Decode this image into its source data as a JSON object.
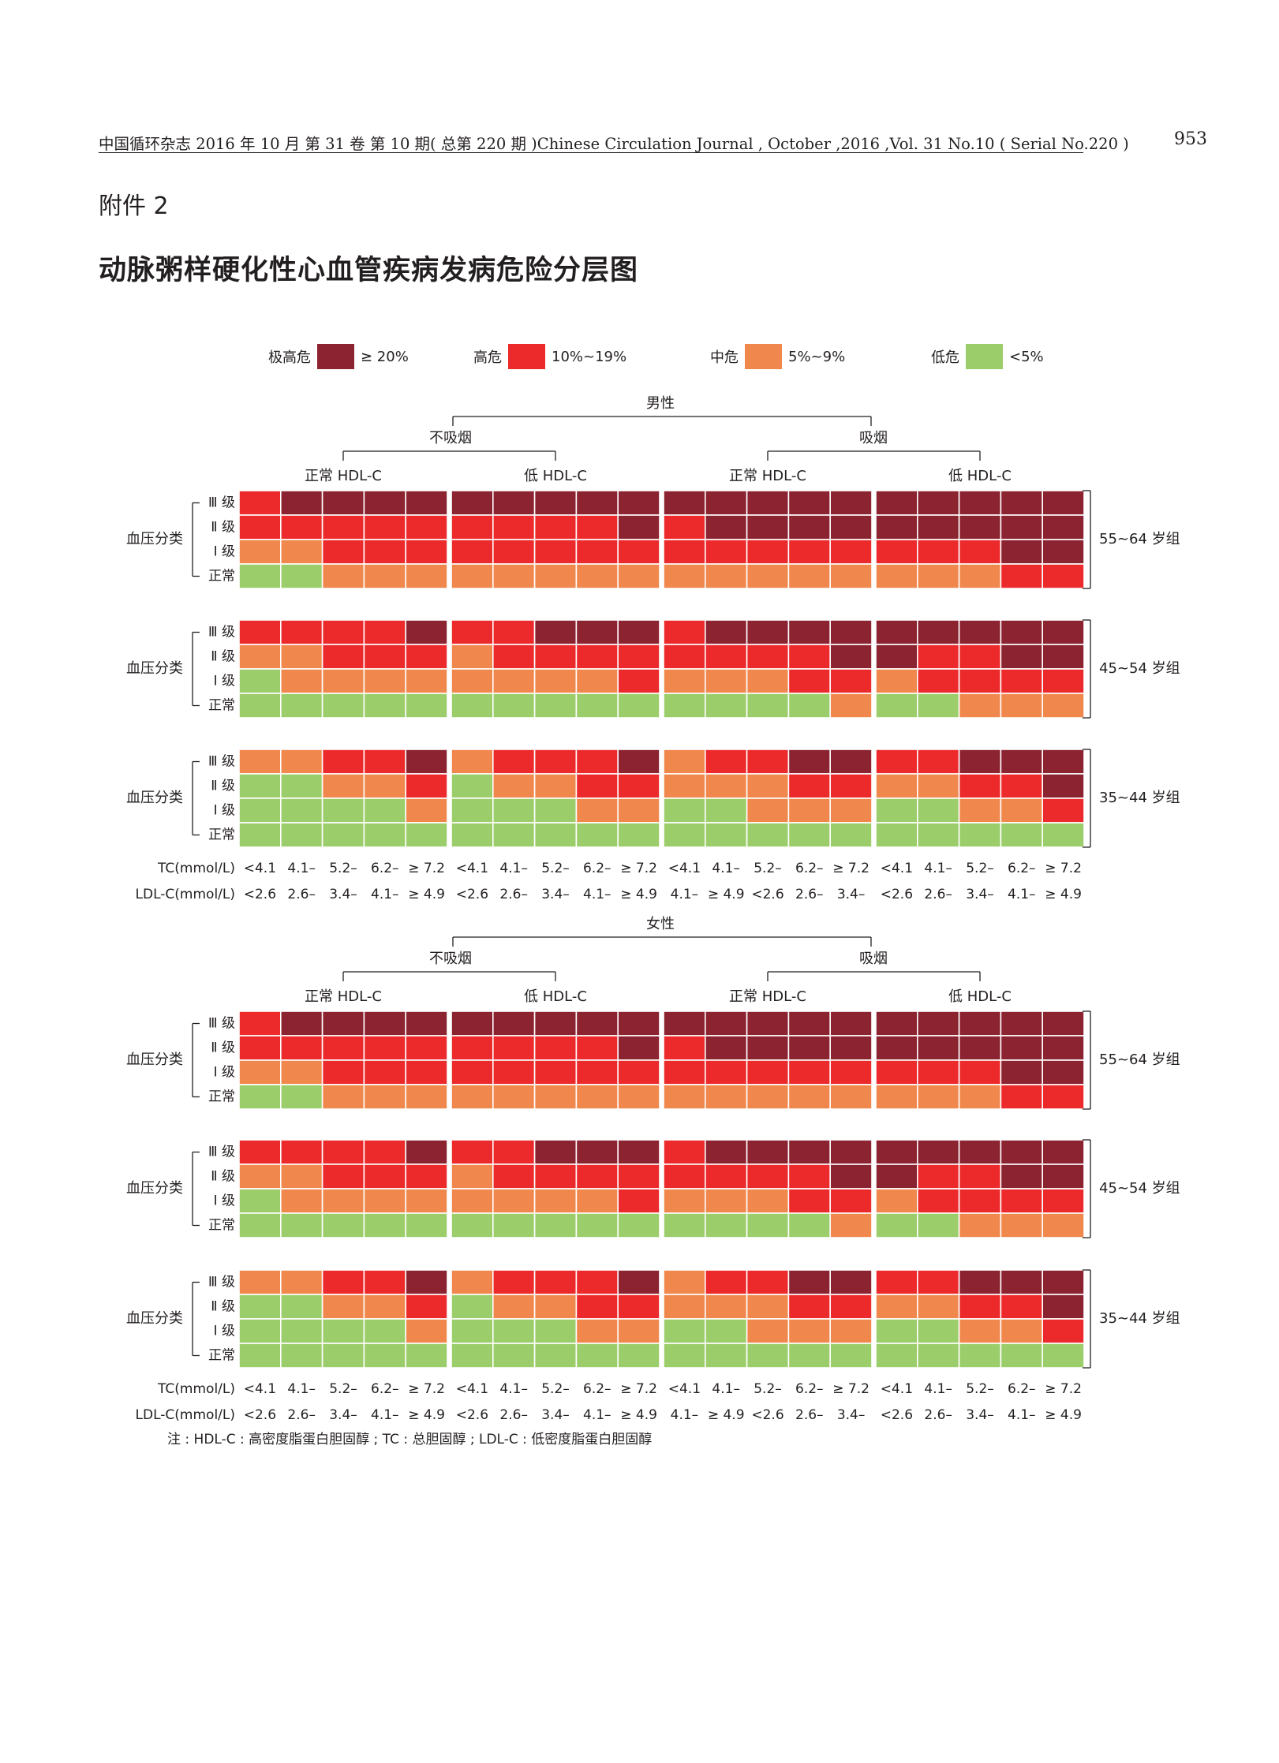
{
  "header": {
    "journal_line": "中国循环杂志 2016 年 10 月 第 31 卷 第 10 期( 总第 220 期 )Chinese Circulation Journal , October ,2016 ,Vol. 31 No.10 ( Serial No.220 )",
    "page_number": "953"
  },
  "appendix_label": "附件 2",
  "title": "动脉粥样硬化性心血管疾病发病危险分层图",
  "legend": [
    {
      "name": "极高危",
      "range": "≥ 20%",
      "color": "#8b2330"
    },
    {
      "name": "高危",
      "range": "10%~19%",
      "color": "#ec2a2c"
    },
    {
      "name": "中危",
      "range": "5%~9%",
      "color": "#f0874d"
    },
    {
      "name": "低危",
      "range": "<5%",
      "color": "#9ccd6b"
    }
  ],
  "note": "注 : HDL-C : 高密度脂蛋白胆固醇 ; TC : 总胆固醇 ; LDL-C : 低密度脂蛋白胆固醇",
  "chart_data": {
    "type": "heatmap",
    "levels": {
      "R": "极高危",
      "H": "高危",
      "M": "中危",
      "L": "低危"
    },
    "row_group_label": "血压分类",
    "row_labels": [
      "Ⅲ 级",
      "Ⅱ 级",
      "Ⅰ 级",
      "正常"
    ],
    "smoking_labels": [
      "不吸烟",
      "吸烟"
    ],
    "hdl_labels": [
      "正常 HDL-C",
      "低 HDL-C",
      "正常 HDL-C",
      "低 HDL-C"
    ],
    "tc_label": "TC(mmol/L)",
    "ldl_label": "LDL-C(mmol/L)",
    "tc_ticks": [
      [
        "<4.1",
        "4.1–",
        "5.2–",
        "6.2–",
        "≥ 7.2"
      ],
      [
        "<4.1",
        "4.1–",
        "5.2–",
        "6.2–",
        "≥ 7.2"
      ],
      [
        "<4.1",
        "4.1–",
        "5.2–",
        "6.2–",
        "≥ 7.2"
      ],
      [
        "<4.1",
        "4.1–",
        "5.2–",
        "6.2–",
        "≥ 7.2"
      ]
    ],
    "ldl_ticks": [
      [
        "<2.6",
        "2.6–",
        "3.4–",
        "4.1–",
        "≥ 4.9"
      ],
      [
        "<2.6",
        "2.6–",
        "3.4–",
        "4.1–",
        "≥ 4.9"
      ],
      [
        "4.1–",
        "≥ 4.9",
        "<2.6",
        "2.6–",
        "3.4–"
      ],
      [
        "<2.6",
        "2.6–",
        "3.4–",
        "4.1–",
        "≥ 4.9"
      ]
    ],
    "sexes": [
      {
        "label": "男性",
        "age_groups": [
          {
            "label": "55~64 岁组",
            "rows": [
              [
                "HRRRR",
                "RRRRR",
                "RRRRR",
                "RRRRR"
              ],
              [
                "HHHHH",
                "HHHHR",
                "HRRRR",
                "RRRRR"
              ],
              [
                "MMHHH",
                "HHHHH",
                "HHHHH",
                "HHHRR"
              ],
              [
                "LLMMM",
                "MMMMM",
                "MMMMM",
                "MMMHH"
              ]
            ]
          },
          {
            "label": "45~54 岁组",
            "rows": [
              [
                "HHHHR",
                "HHRRR",
                "HRRRR",
                "RRRRR"
              ],
              [
                "MMHHH",
                "MHHHH",
                "HHHHR",
                "RHHRR"
              ],
              [
                "LMMMM",
                "MMMMH",
                "MMMHH",
                "MHHHH"
              ],
              [
                "LLLLL",
                "LLLLL",
                "LLLLM",
                "LLMMM"
              ]
            ]
          },
          {
            "label": "35~44 岁组",
            "rows": [
              [
                "MMHHR",
                "MHHHR",
                "MHHRR",
                "HHRRR"
              ],
              [
                "LLMMH",
                "LMMHH",
                "MMMHH",
                "MMHHR"
              ],
              [
                "LLLLM",
                "LLLMM",
                "LLMMM",
                "LLMMH"
              ],
              [
                "LLLLL",
                "LLLLL",
                "LLLLL",
                "LLLLL"
              ]
            ]
          }
        ]
      },
      {
        "label": "女性",
        "age_groups": [
          {
            "label": "55~64 岁组",
            "rows": [
              [
                "HRRRR",
                "RRRRR",
                "RRRRR",
                "RRRRR"
              ],
              [
                "HHHHH",
                "HHHHR",
                "HRRRR",
                "RRRRR"
              ],
              [
                "MMHHH",
                "HHHHH",
                "HHHHH",
                "HHHRR"
              ],
              [
                "LLMMM",
                "MMMMM",
                "MMMMM",
                "MMMHH"
              ]
            ]
          },
          {
            "label": "45~54 岁组",
            "rows": [
              [
                "HHHHR",
                "HHRRR",
                "HRRRR",
                "RRRRR"
              ],
              [
                "MMHHH",
                "MHHHH",
                "HHHHR",
                "RHHRR"
              ],
              [
                "LMMMM",
                "MMMMH",
                "MMMHH",
                "MHHHH"
              ],
              [
                "LLLLL",
                "LLLLL",
                "LLLLM",
                "LLMMM"
              ]
            ]
          },
          {
            "label": "35~44 岁组",
            "rows": [
              [
                "MMHHR",
                "MHHHR",
                "MHHRR",
                "HHRRR"
              ],
              [
                "LLMMH",
                "LMMHH",
                "MMMHH",
                "MMHHR"
              ],
              [
                "LLLLM",
                "LLLMM",
                "LLMMM",
                "LLMMH"
              ],
              [
                "LLLLL",
                "LLLLL",
                "LLLLL",
                "LLLLL"
              ]
            ]
          }
        ]
      }
    ]
  }
}
